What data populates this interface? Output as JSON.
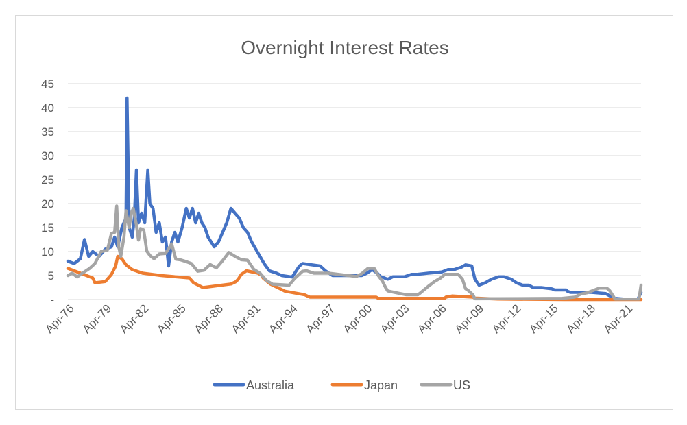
{
  "chart_data": {
    "type": "line",
    "title": "Overnight Interest Rates",
    "xlabel": "",
    "ylabel": "",
    "x_range": [
      "1976-04",
      "2022-04"
    ],
    "x_ticks": [
      "Apr-76",
      "Apr-79",
      "Apr-82",
      "Apr-85",
      "Apr-88",
      "Apr-91",
      "Apr-94",
      "Apr-97",
      "Apr-00",
      "Apr-03",
      "Apr-06",
      "Apr-09",
      "Apr-12",
      "Apr-15",
      "Apr-18",
      "Apr-21"
    ],
    "y_ticks": [
      "-",
      "5",
      "10",
      "15",
      "20",
      "25",
      "30",
      "35",
      "40",
      "45"
    ],
    "ylim": [
      0,
      45
    ],
    "grid": "horizontal",
    "legend_position": "bottom",
    "series": [
      {
        "name": "Australia",
        "color": "#4472c4",
        "points": [
          [
            "1976-04",
            8
          ],
          [
            "1976-10",
            7.5
          ],
          [
            "1977-04",
            8.5
          ],
          [
            "1977-08",
            12.5
          ],
          [
            "1977-12",
            9
          ],
          [
            "1978-04",
            10
          ],
          [
            "1978-10",
            9
          ],
          [
            "1979-04",
            10.5
          ],
          [
            "1979-10",
            11
          ],
          [
            "1980-01",
            13
          ],
          [
            "1980-04",
            11
          ],
          [
            "1980-08",
            15
          ],
          [
            "1980-12",
            17
          ],
          [
            "1981-01",
            42
          ],
          [
            "1981-03",
            15
          ],
          [
            "1981-06",
            13
          ],
          [
            "1981-08",
            17
          ],
          [
            "1981-10",
            27
          ],
          [
            "1981-12",
            16
          ],
          [
            "1982-03",
            18
          ],
          [
            "1982-06",
            16
          ],
          [
            "1982-09",
            27
          ],
          [
            "1982-11",
            20
          ],
          [
            "1983-02",
            19
          ],
          [
            "1983-05",
            14
          ],
          [
            "1983-08",
            16
          ],
          [
            "1983-11",
            12
          ],
          [
            "1984-02",
            13
          ],
          [
            "1984-05",
            7
          ],
          [
            "1984-08",
            12
          ],
          [
            "1984-11",
            14
          ],
          [
            "1985-02",
            12
          ],
          [
            "1985-06",
            15
          ],
          [
            "1985-10",
            19
          ],
          [
            "1986-01",
            17
          ],
          [
            "1986-04",
            19
          ],
          [
            "1986-07",
            16
          ],
          [
            "1986-10",
            18
          ],
          [
            "1987-01",
            16
          ],
          [
            "1987-04",
            15
          ],
          [
            "1987-07",
            13
          ],
          [
            "1987-10",
            12
          ],
          [
            "1988-01",
            11
          ],
          [
            "1988-05",
            12
          ],
          [
            "1988-09",
            14
          ],
          [
            "1989-01",
            16
          ],
          [
            "1989-05",
            19
          ],
          [
            "1989-09",
            18
          ],
          [
            "1990-01",
            17
          ],
          [
            "1990-05",
            15
          ],
          [
            "1990-09",
            14
          ],
          [
            "1991-01",
            12
          ],
          [
            "1991-05",
            10.5
          ],
          [
            "1991-09",
            9
          ],
          [
            "1992-01",
            7.5
          ],
          [
            "1992-06",
            6
          ],
          [
            "1993-01",
            5.5
          ],
          [
            "1993-06",
            5
          ],
          [
            "1994-04",
            4.7
          ],
          [
            "1994-11",
            7
          ],
          [
            "1995-02",
            7.5
          ],
          [
            "1996-07",
            7
          ],
          [
            "1996-12",
            6
          ],
          [
            "1997-07",
            5
          ],
          [
            "1998-06",
            5
          ],
          [
            "1999-11",
            5
          ],
          [
            "2000-04",
            5.5
          ],
          [
            "2000-09",
            6.25
          ],
          [
            "2001-02",
            5.5
          ],
          [
            "2001-05",
            4.8
          ],
          [
            "2001-12",
            4.25
          ],
          [
            "2002-05",
            4.75
          ],
          [
            "2003-04",
            4.75
          ],
          [
            "2003-11",
            5.25
          ],
          [
            "2004-04",
            5.25
          ],
          [
            "2005-03",
            5.5
          ],
          [
            "2006-04",
            5.75
          ],
          [
            "2006-10",
            6.25
          ],
          [
            "2007-04",
            6.25
          ],
          [
            "2007-11",
            6.75
          ],
          [
            "2008-03",
            7.25
          ],
          [
            "2008-09",
            7
          ],
          [
            "2008-12",
            4.25
          ],
          [
            "2009-04",
            3
          ],
          [
            "2009-10",
            3.5
          ],
          [
            "2010-04",
            4.25
          ],
          [
            "2010-11",
            4.75
          ],
          [
            "2011-04",
            4.75
          ],
          [
            "2011-11",
            4.25
          ],
          [
            "2012-04",
            3.5
          ],
          [
            "2012-10",
            3
          ],
          [
            "2013-04",
            3
          ],
          [
            "2013-08",
            2.5
          ],
          [
            "2014-04",
            2.5
          ],
          [
            "2015-02",
            2.25
          ],
          [
            "2015-05",
            2
          ],
          [
            "2016-04",
            2
          ],
          [
            "2016-05",
            1.75
          ],
          [
            "2016-08",
            1.5
          ],
          [
            "2018-04",
            1.5
          ],
          [
            "2019-06",
            1.25
          ],
          [
            "2019-10",
            0.75
          ],
          [
            "2020-03",
            0.25
          ],
          [
            "2020-11",
            0.1
          ],
          [
            "2022-01",
            0.1
          ],
          [
            "2022-04",
            1.5
          ]
        ]
      },
      {
        "name": "Japan",
        "color": "#ed7d31",
        "points": [
          [
            "1976-04",
            6.5
          ],
          [
            "1977-04",
            5.5
          ],
          [
            "1978-04",
            4.5
          ],
          [
            "1978-06",
            3.5
          ],
          [
            "1979-04",
            3.75
          ],
          [
            "1979-10",
            5.25
          ],
          [
            "1980-02",
            7
          ],
          [
            "1980-04",
            9
          ],
          [
            "1980-08",
            8.5
          ],
          [
            "1980-12",
            7.25
          ],
          [
            "1981-06",
            6.25
          ],
          [
            "1982-04",
            5.5
          ],
          [
            "1983-10",
            5
          ],
          [
            "1986-01",
            4.5
          ],
          [
            "1986-05",
            3.5
          ],
          [
            "1987-02",
            2.5
          ],
          [
            "1989-05",
            3.25
          ],
          [
            "1989-10",
            3.75
          ],
          [
            "1989-12",
            4.25
          ],
          [
            "1990-03",
            5.25
          ],
          [
            "1990-08",
            6
          ],
          [
            "1991-07",
            5.5
          ],
          [
            "1991-11",
            5
          ],
          [
            "1991-12",
            4.5
          ],
          [
            "1992-04",
            3.75
          ],
          [
            "1992-07",
            3.25
          ],
          [
            "1993-02",
            2.5
          ],
          [
            "1993-09",
            1.75
          ],
          [
            "1995-04",
            1
          ],
          [
            "1995-09",
            0.5
          ],
          [
            "2001-01",
            0.5
          ],
          [
            "2001-03",
            0.25
          ],
          [
            "2006-07",
            0.25
          ],
          [
            "2006-08",
            0.5
          ],
          [
            "2007-02",
            0.75
          ],
          [
            "2008-10",
            0.5
          ],
          [
            "2008-12",
            0.3
          ],
          [
            "2010-10",
            0.1
          ],
          [
            "2016-02",
            0
          ],
          [
            "2022-04",
            0
          ]
        ]
      },
      {
        "name": "US",
        "color": "#a5a5a5",
        "points": [
          [
            "1976-04",
            5
          ],
          [
            "1976-08",
            5.5
          ],
          [
            "1977-01",
            4.7
          ],
          [
            "1977-06",
            5.5
          ],
          [
            "1978-01",
            6.5
          ],
          [
            "1978-06",
            7.5
          ],
          [
            "1978-12",
            10
          ],
          [
            "1979-06",
            10.3
          ],
          [
            "1979-10",
            13.8
          ],
          [
            "1980-01",
            14
          ],
          [
            "1980-03",
            19.5
          ],
          [
            "1980-05",
            11
          ],
          [
            "1980-07",
            9
          ],
          [
            "1980-10",
            13
          ],
          [
            "1980-12",
            18.5
          ],
          [
            "1981-03",
            15
          ],
          [
            "1981-05",
            18
          ],
          [
            "1981-07",
            19
          ],
          [
            "1981-10",
            15.5
          ],
          [
            "1981-12",
            12.4
          ],
          [
            "1982-02",
            14.8
          ],
          [
            "1982-05",
            14.5
          ],
          [
            "1982-08",
            10.1
          ],
          [
            "1982-11",
            9.2
          ],
          [
            "1983-03",
            8.5
          ],
          [
            "1983-08",
            9.5
          ],
          [
            "1984-02",
            9.6
          ],
          [
            "1984-08",
            11.6
          ],
          [
            "1984-12",
            8.4
          ],
          [
            "1985-04",
            8.3
          ],
          [
            "1985-10",
            7.9
          ],
          [
            "1986-03",
            7.5
          ],
          [
            "1986-09",
            5.9
          ],
          [
            "1987-03",
            6.1
          ],
          [
            "1987-09",
            7.3
          ],
          [
            "1988-03",
            6.6
          ],
          [
            "1988-09",
            8.1
          ],
          [
            "1989-03",
            9.8
          ],
          [
            "1989-09",
            9
          ],
          [
            "1990-03",
            8.3
          ],
          [
            "1990-09",
            8.2
          ],
          [
            "1991-03",
            6.3
          ],
          [
            "1991-09",
            5.5
          ],
          [
            "1992-03",
            4
          ],
          [
            "1992-09",
            3.2
          ],
          [
            "1994-01",
            3
          ],
          [
            "1994-06",
            4.3
          ],
          [
            "1995-02",
            5.9
          ],
          [
            "1995-06",
            6
          ],
          [
            "1996-01",
            5.5
          ],
          [
            "1997-03",
            5.5
          ],
          [
            "1998-10",
            5
          ],
          [
            "1999-06",
            4.8
          ],
          [
            "1999-11",
            5.4
          ],
          [
            "2000-05",
            6.5
          ],
          [
            "2000-11",
            6.5
          ],
          [
            "2001-03",
            5
          ],
          [
            "2001-07",
            3.8
          ],
          [
            "2001-10",
            2.5
          ],
          [
            "2001-12",
            1.8
          ],
          [
            "2002-11",
            1.3
          ],
          [
            "2003-06",
            1
          ],
          [
            "2004-05",
            1
          ],
          [
            "2004-07",
            1.3
          ],
          [
            "2005-03",
            2.75
          ],
          [
            "2005-09",
            3.75
          ],
          [
            "2006-03",
            4.5
          ],
          [
            "2006-07",
            5.25
          ],
          [
            "2007-08",
            5.25
          ],
          [
            "2007-12",
            4.25
          ],
          [
            "2008-03",
            2.25
          ],
          [
            "2008-05",
            2
          ],
          [
            "2008-10",
            1
          ],
          [
            "2008-12",
            0.15
          ],
          [
            "2015-12",
            0.25
          ],
          [
            "2016-12",
            0.5
          ],
          [
            "2017-06",
            1.15
          ],
          [
            "2017-12",
            1.4
          ],
          [
            "2018-06",
            1.9
          ],
          [
            "2018-12",
            2.4
          ],
          [
            "2019-07",
            2.4
          ],
          [
            "2019-10",
            1.8
          ],
          [
            "2020-03",
            0.1
          ],
          [
            "2022-02",
            0.1
          ],
          [
            "2022-04",
            3
          ]
        ]
      }
    ]
  }
}
